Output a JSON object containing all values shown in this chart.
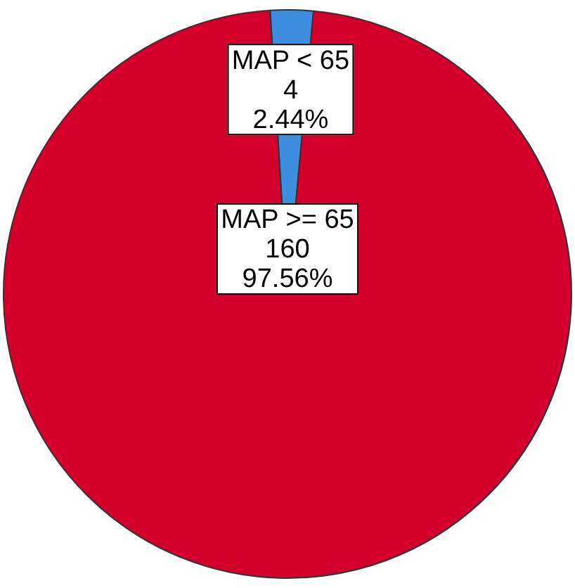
{
  "chart_data": {
    "type": "pie",
    "categories": [
      "MAP < 65",
      "MAP >= 65"
    ],
    "values": [
      2.44,
      97.56
    ],
    "value_labels": [
      "4\n2.44%",
      "160\n97.56%"
    ],
    "colors": [
      "#3d8ee0",
      "#d4002b"
    ],
    "legend": false
  }
}
